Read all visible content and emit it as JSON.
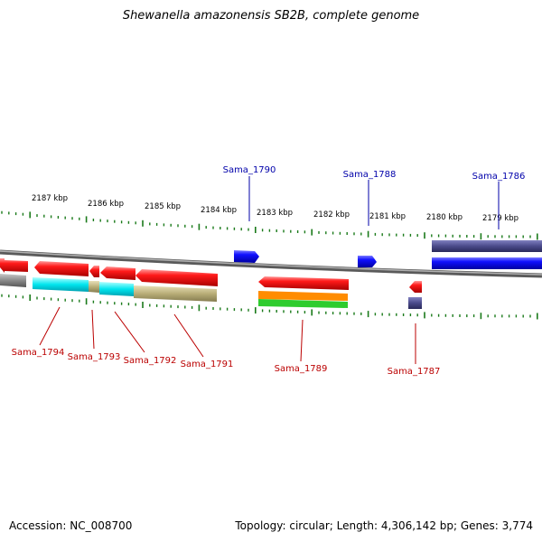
{
  "title": "Shewanella amazonensis SB2B, complete genome",
  "footer": {
    "accession": "Accession: NC_008700",
    "summary": "Topology: circular; Length: 4,306,142 bp; Genes: 3,774"
  },
  "scale_labels": [
    "2187 kbp",
    "2186 kbp",
    "2185 kbp",
    "2184 kbp",
    "2183 kbp",
    "2182 kbp",
    "2181 kbp",
    "2180 kbp",
    "2179 kbp"
  ],
  "gene_labels": {
    "top": [
      "Sama_1790",
      "Sama_1788",
      "Sama_1786"
    ],
    "bottom": [
      "Sama_1794",
      "Sama_1793",
      "Sama_1792",
      "Sama_1791",
      "Sama_1789",
      "Sama_1787"
    ]
  },
  "colors": {
    "forward_gene": "#0000ee",
    "reverse_gene": "#ee0000",
    "backbone": "#808080",
    "tick": "#1a7a1a",
    "top_label": "#0000aa",
    "bottom_label": "#bb0000",
    "dark_blue_band": "#4a4a8a",
    "cyan_feature": "#00e5ee",
    "olive_feature": "#b9ae78",
    "orange_feature": "#ff8c00",
    "green_feature": "#2ecc2e",
    "grey_feature": "#6e6e6e"
  }
}
